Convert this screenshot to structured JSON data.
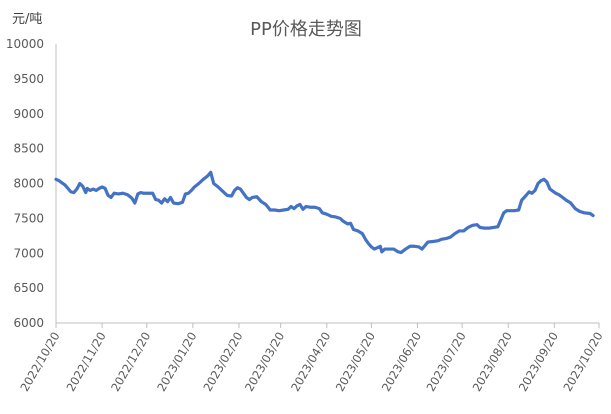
{
  "chart_data": {
    "type": "line",
    "title": "PP价格走势图",
    "ylabel": "元/吨",
    "xlabel": "",
    "ylim": [
      6000,
      10000
    ],
    "y_ticks": [
      "6000",
      "6500",
      "7000",
      "7500",
      "8000",
      "8500",
      "9000",
      "9500",
      "10000"
    ],
    "x_tick_labels": [
      "2022/10/20",
      "2022/11/20",
      "2022/12/20",
      "2023/01/20",
      "2023/02/20",
      "2023/03/20",
      "2023/04/20",
      "2023/05/20",
      "2023/06/20",
      "2023/07/20",
      "2023/08/20",
      "2023/09/20",
      "2023/10/20"
    ],
    "grid": false,
    "series_color": "#4472C4",
    "axis_color": "#BFBFBF",
    "points": [
      [
        "2022/10/20",
        8060
      ],
      [
        "2022/10/22",
        8040
      ],
      [
        "2022/10/24",
        8010
      ],
      [
        "2022/10/26",
        7980
      ],
      [
        "2022/10/28",
        7930
      ],
      [
        "2022/10/30",
        7880
      ],
      [
        "2022/11/01",
        7870
      ],
      [
        "2022/11/03",
        7920
      ],
      [
        "2022/11/05",
        8000
      ],
      [
        "2022/11/07",
        7960
      ],
      [
        "2022/11/09",
        7870
      ],
      [
        "2022/11/10",
        7930
      ],
      [
        "2022/11/12",
        7900
      ],
      [
        "2022/11/14",
        7920
      ],
      [
        "2022/11/16",
        7900
      ],
      [
        "2022/11/18",
        7930
      ],
      [
        "2022/11/20",
        7950
      ],
      [
        "2022/11/22",
        7930
      ],
      [
        "2022/11/24",
        7830
      ],
      [
        "2022/11/26",
        7800
      ],
      [
        "2022/11/28",
        7860
      ],
      [
        "2022/12/01",
        7850
      ],
      [
        "2022/12/04",
        7860
      ],
      [
        "2022/12/07",
        7840
      ],
      [
        "2022/12/10",
        7790
      ],
      [
        "2022/12/12",
        7720
      ],
      [
        "2022/12/14",
        7850
      ],
      [
        "2022/12/16",
        7870
      ],
      [
        "2022/12/18",
        7860
      ],
      [
        "2022/12/21",
        7860
      ],
      [
        "2022/12/24",
        7860
      ],
      [
        "2022/12/26",
        7770
      ],
      [
        "2022/12/28",
        7760
      ],
      [
        "2022/12/30",
        7720
      ],
      [
        "2023/01/01",
        7780
      ],
      [
        "2023/01/03",
        7740
      ],
      [
        "2023/01/05",
        7800
      ],
      [
        "2023/01/07",
        7720
      ],
      [
        "2023/01/10",
        7710
      ],
      [
        "2023/01/13",
        7730
      ],
      [
        "2023/01/15",
        7850
      ],
      [
        "2023/01/17",
        7860
      ],
      [
        "2023/01/19",
        7900
      ],
      [
        "2023/01/21",
        7950
      ],
      [
        "2023/01/24",
        8000
      ],
      [
        "2023/01/27",
        8060
      ],
      [
        "2023/01/30",
        8110
      ],
      [
        "2023/02/01",
        8160
      ],
      [
        "2023/02/03",
        8000
      ],
      [
        "2023/02/06",
        7950
      ],
      [
        "2023/02/09",
        7890
      ],
      [
        "2023/02/12",
        7830
      ],
      [
        "2023/02/15",
        7820
      ],
      [
        "2023/02/17",
        7900
      ],
      [
        "2023/02/19",
        7940
      ],
      [
        "2023/02/21",
        7920
      ],
      [
        "2023/02/23",
        7860
      ],
      [
        "2023/02/25",
        7800
      ],
      [
        "2023/02/27",
        7770
      ],
      [
        "2023/03/01",
        7800
      ],
      [
        "2023/03/04",
        7810
      ],
      [
        "2023/03/07",
        7740
      ],
      [
        "2023/03/10",
        7700
      ],
      [
        "2023/03/13",
        7620
      ],
      [
        "2023/03/16",
        7620
      ],
      [
        "2023/03/19",
        7610
      ],
      [
        "2023/03/22",
        7620
      ],
      [
        "2023/03/25",
        7630
      ],
      [
        "2023/03/27",
        7670
      ],
      [
        "2023/03/29",
        7640
      ],
      [
        "2023/03/31",
        7680
      ],
      [
        "2023/04/02",
        7700
      ],
      [
        "2023/04/04",
        7630
      ],
      [
        "2023/04/06",
        7670
      ],
      [
        "2023/04/09",
        7660
      ],
      [
        "2023/04/12",
        7660
      ],
      [
        "2023/04/15",
        7640
      ],
      [
        "2023/04/17",
        7580
      ],
      [
        "2023/04/20",
        7560
      ],
      [
        "2023/04/23",
        7530
      ],
      [
        "2023/04/26",
        7520
      ],
      [
        "2023/04/29",
        7500
      ],
      [
        "2023/05/01",
        7460
      ],
      [
        "2023/05/04",
        7420
      ],
      [
        "2023/05/06",
        7430
      ],
      [
        "2023/05/08",
        7340
      ],
      [
        "2023/05/11",
        7320
      ],
      [
        "2023/05/14",
        7280
      ],
      [
        "2023/05/16",
        7200
      ],
      [
        "2023/05/18",
        7140
      ],
      [
        "2023/05/20",
        7090
      ],
      [
        "2023/05/22",
        7060
      ],
      [
        "2023/05/24",
        7080
      ],
      [
        "2023/05/26",
        7100
      ],
      [
        "2023/05/27",
        7020
      ],
      [
        "2023/05/29",
        7060
      ],
      [
        "2023/06/01",
        7060
      ],
      [
        "2023/06/04",
        7060
      ],
      [
        "2023/06/07",
        7020
      ],
      [
        "2023/06/09",
        7010
      ],
      [
        "2023/06/12",
        7060
      ],
      [
        "2023/06/15",
        7100
      ],
      [
        "2023/06/18",
        7100
      ],
      [
        "2023/06/21",
        7090
      ],
      [
        "2023/06/23",
        7060
      ],
      [
        "2023/06/25",
        7110
      ],
      [
        "2023/06/27",
        7160
      ],
      [
        "2023/07/01",
        7170
      ],
      [
        "2023/07/04",
        7180
      ],
      [
        "2023/07/06",
        7200
      ],
      [
        "2023/07/09",
        7210
      ],
      [
        "2023/07/12",
        7230
      ],
      [
        "2023/07/15",
        7280
      ],
      [
        "2023/07/18",
        7320
      ],
      [
        "2023/07/21",
        7320
      ],
      [
        "2023/07/24",
        7370
      ],
      [
        "2023/07/27",
        7400
      ],
      [
        "2023/07/30",
        7410
      ],
      [
        "2023/08/01",
        7370
      ],
      [
        "2023/08/04",
        7360
      ],
      [
        "2023/08/07",
        7360
      ],
      [
        "2023/08/10",
        7370
      ],
      [
        "2023/08/13",
        7380
      ],
      [
        "2023/08/15",
        7480
      ],
      [
        "2023/08/17",
        7580
      ],
      [
        "2023/08/19",
        7610
      ],
      [
        "2023/08/21",
        7610
      ],
      [
        "2023/08/24",
        7610
      ],
      [
        "2023/08/27",
        7620
      ],
      [
        "2023/08/29",
        7760
      ],
      [
        "2023/09/01",
        7830
      ],
      [
        "2023/09/03",
        7880
      ],
      [
        "2023/09/05",
        7860
      ],
      [
        "2023/09/07",
        7900
      ],
      [
        "2023/09/09",
        8000
      ],
      [
        "2023/09/11",
        8040
      ],
      [
        "2023/09/13",
        8060
      ],
      [
        "2023/09/15",
        8020
      ],
      [
        "2023/09/17",
        7920
      ],
      [
        "2023/09/19",
        7890
      ],
      [
        "2023/09/21",
        7860
      ],
      [
        "2023/09/23",
        7840
      ],
      [
        "2023/09/25",
        7810
      ],
      [
        "2023/09/28",
        7760
      ],
      [
        "2023/10/01",
        7720
      ],
      [
        "2023/10/04",
        7640
      ],
      [
        "2023/10/07",
        7600
      ],
      [
        "2023/10/10",
        7580
      ],
      [
        "2023/10/14",
        7570
      ],
      [
        "2023/10/16",
        7540
      ]
    ]
  }
}
